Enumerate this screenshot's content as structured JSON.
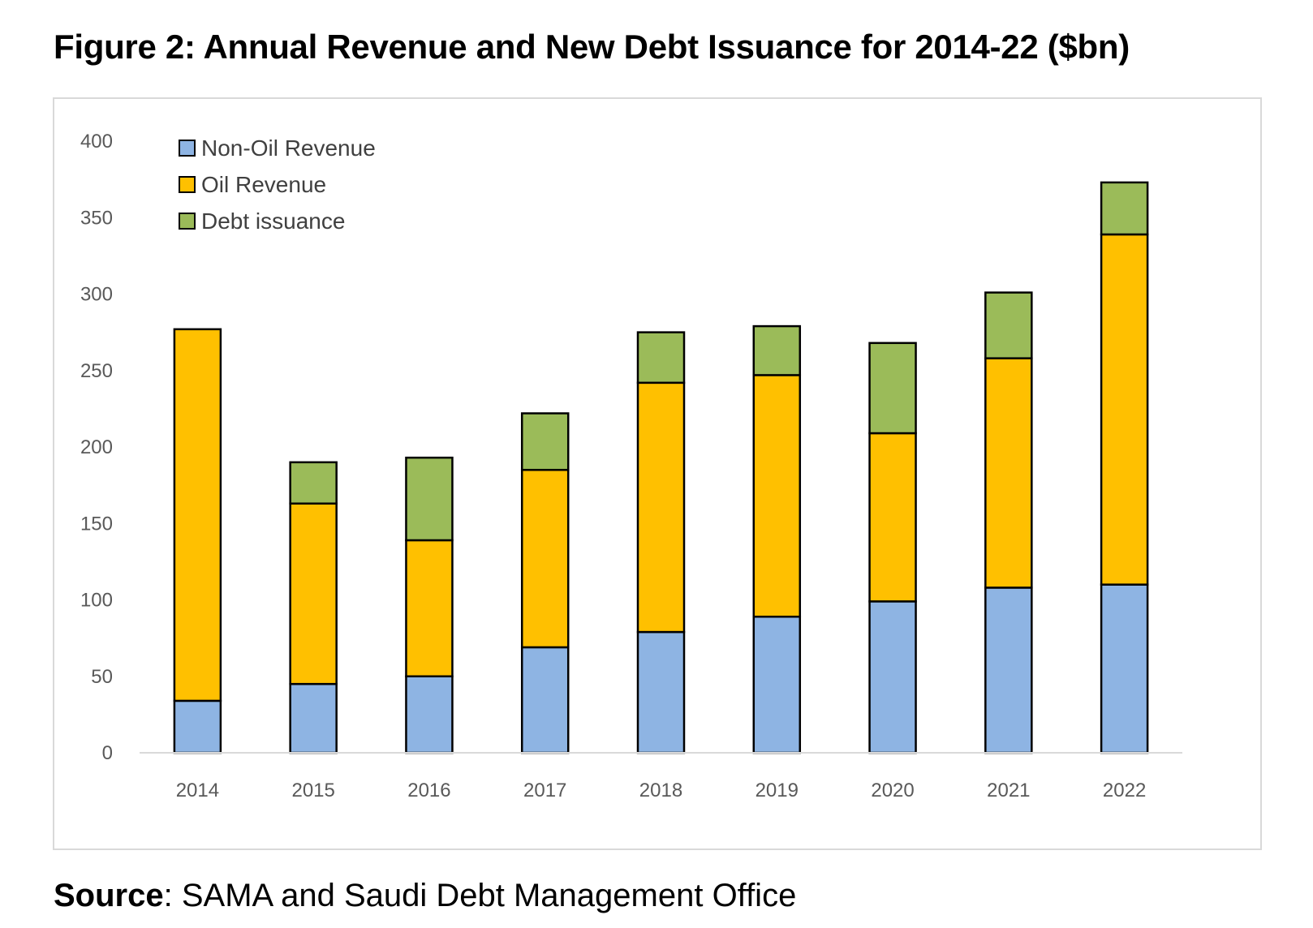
{
  "title": "Figure 2: Annual Revenue and New Debt Issuance for 2014-22 ($bn)",
  "source": {
    "label": "Source",
    "text": ": SAMA and Saudi Debt Management Office"
  },
  "colors": {
    "non_oil": "#8EB4E3",
    "oil": "#FFC000",
    "debt": "#9BBB59",
    "outline": "#000000",
    "axis": "#d9d9d9",
    "tick_text": "#595959"
  },
  "chart_data": {
    "type": "bar",
    "stacked": true,
    "title": "Figure 2: Annual Revenue and New Debt Issuance for 2014-22 ($bn)",
    "xlabel": "",
    "ylabel": "",
    "ylim": [
      0,
      400
    ],
    "yticks": [
      0,
      50,
      100,
      150,
      200,
      250,
      300,
      350,
      400
    ],
    "grid": false,
    "legend_position": "top-left",
    "categories": [
      "2014",
      "2015",
      "2016",
      "2017",
      "2018",
      "2019",
      "2020",
      "2021",
      "2022"
    ],
    "series": [
      {
        "name": "Non-Oil Revenue",
        "color_key": "non_oil",
        "values": [
          34,
          45,
          50,
          69,
          79,
          89,
          99,
          108,
          110
        ]
      },
      {
        "name": "Oil Revenue",
        "color_key": "oil",
        "values": [
          243,
          118,
          89,
          116,
          163,
          158,
          110,
          150,
          229
        ]
      },
      {
        "name": "Debt issuance",
        "color_key": "debt",
        "values": [
          0,
          27,
          54,
          37,
          33,
          32,
          59,
          43,
          34
        ]
      }
    ]
  }
}
